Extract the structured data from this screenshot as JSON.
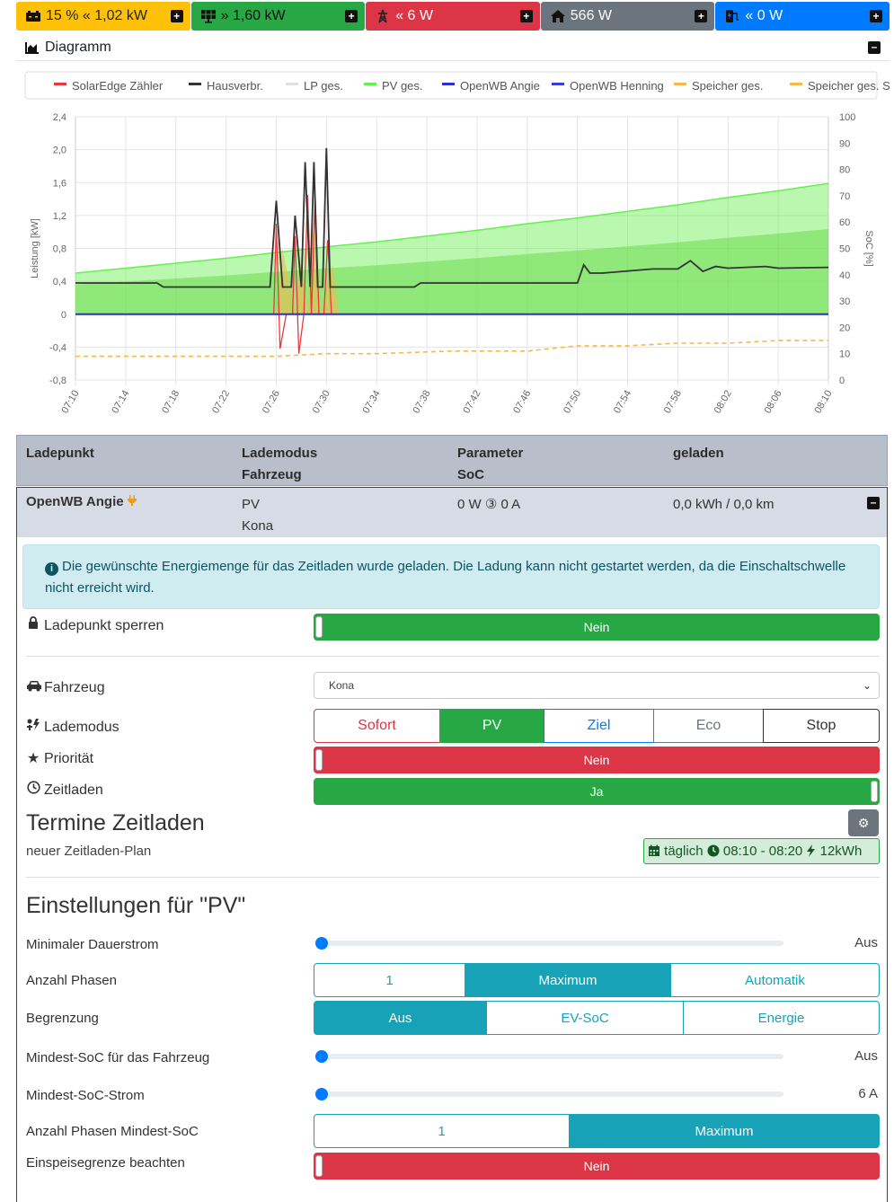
{
  "topbar": {
    "battery": {
      "value": "15 % « 1,02 kW"
    },
    "pv": {
      "value": "» 1,60 kW"
    },
    "grid": {
      "value": "« 6 W"
    },
    "house": {
      "value": "566 W"
    },
    "chargepoints": {
      "value": "« 0 W"
    }
  },
  "diagram": {
    "title": "Diagramm"
  },
  "chart_data": {
    "type": "line",
    "legend": [
      "SolarEdge Zähler",
      "Hausverbr.",
      "LP ges.",
      "PV ges.",
      "OpenWB Angie",
      "OpenWB Henning",
      "Speicher ges.",
      "Speicher ges. SoC"
    ],
    "legend_colors": [
      "#e8383d",
      "#333333",
      "#e0e0e0",
      "#66f050",
      "#2c2cdb",
      "#3a3ae0",
      "#f4b84f",
      "#f4b84f"
    ],
    "x_ticks": [
      "07:10",
      "07:14",
      "07:18",
      "07:22",
      "07:26",
      "07:30",
      "07:34",
      "07:38",
      "07:42",
      "07:46",
      "07:50",
      "07:54",
      "07:58",
      "08:02",
      "08:06",
      "08:10"
    ],
    "y_left_ticks": [
      "2,4",
      "2,0",
      "1,6",
      "1,2",
      "0,8",
      "0,4",
      "0",
      "-0,4",
      "-0,8"
    ],
    "y_right_ticks": [
      "100",
      "90",
      "80",
      "70",
      "60",
      "50",
      "40",
      "30",
      "20",
      "10",
      "0"
    ],
    "ylabel_left": "Leistung [kW]",
    "ylabel_right": "SoC [%]",
    "ylim_left": [
      -0.8,
      2.4
    ],
    "ylim_right": [
      0,
      100
    ],
    "series": [
      {
        "name": "PV ges.",
        "color": "#66f050",
        "x": [
          0,
          4,
          8,
          12,
          16,
          20,
          24,
          28,
          32,
          36,
          40,
          44,
          48,
          52,
          56,
          60
        ],
        "values": [
          0.5,
          0.56,
          0.62,
          0.68,
          0.75,
          0.82,
          0.88,
          0.95,
          1.02,
          1.1,
          1.17,
          1.25,
          1.33,
          1.42,
          1.5,
          1.59
        ]
      },
      {
        "name": "Hausverbr.",
        "color": "#333333",
        "x": [
          0,
          6.5,
          7,
          15.5,
          16,
          16.5,
          17.2,
          17.5,
          18,
          18.3,
          18.7,
          19,
          19.3,
          19.7,
          20,
          20.3,
          20.8,
          27,
          27.5,
          40,
          40.5,
          41,
          42,
          46,
          48,
          49,
          50,
          51,
          52,
          55,
          56,
          60
        ],
        "values": [
          0.38,
          0.38,
          0.33,
          0.33,
          1.38,
          0.33,
          0.33,
          1.2,
          0.33,
          1.85,
          0.33,
          1.85,
          0.33,
          0.33,
          2.02,
          0.33,
          0.33,
          0.33,
          0.38,
          0.38,
          0.6,
          0.5,
          0.5,
          0.55,
          0.55,
          0.65,
          0.52,
          0.58,
          0.56,
          0.58,
          0.56,
          0.57
        ]
      },
      {
        "name": "SolarEdge Zähler",
        "color": "#e8383d",
        "x": [
          0,
          15.8,
          16,
          16.3,
          16.8,
          17.3,
          17.5,
          17.8,
          18.2,
          18.5,
          18.8,
          19.1,
          19.4,
          19.8,
          20.1,
          20.4,
          20.8,
          60
        ],
        "values": [
          0,
          0,
          1.1,
          -0.42,
          0,
          0,
          0.95,
          -0.48,
          0,
          1.45,
          0,
          1.45,
          0,
          0,
          0.9,
          0,
          0,
          0
        ]
      },
      {
        "name": "Speicher ges.",
        "color": "#f4b84f",
        "x": [
          0,
          16,
          16.5,
          17.5,
          18,
          18.5,
          19,
          19.5,
          20.5,
          21,
          60
        ],
        "values": [
          0,
          0,
          0.8,
          0,
          0.7,
          0,
          1.2,
          0,
          0.6,
          0,
          0
        ]
      },
      {
        "name": "Speicher ges. SoC",
        "color": "#f4b84f",
        "x": [
          0,
          8,
          16,
          20,
          24,
          30,
          36,
          40,
          44,
          48,
          52,
          56,
          60
        ],
        "values": [
          9,
          9,
          9,
          10,
          10,
          11,
          11,
          13,
          13,
          14,
          14,
          15,
          15
        ]
      },
      {
        "name": "OpenWB Angie",
        "color": "#2c2cdb",
        "x": [
          0,
          60
        ],
        "values": [
          0,
          0
        ]
      }
    ]
  },
  "table": {
    "headers": {
      "col1": "Ladepunkt",
      "col2a": "Lademodus",
      "col2b": "Fahrzeug",
      "col3a": "Parameter",
      "col3b": "SoC",
      "col4": "geladen"
    },
    "row": {
      "name": "OpenWB Angie",
      "mode": "PV",
      "vehicle": "Kona",
      "params": "0 W ③ 0 A",
      "charged": "0,0 kWh / 0,0 km"
    }
  },
  "alert": {
    "text": "Die gewünschte Energiemenge für das Zeitladen wurde geladen. Die Ladung kann nicht gestartet werden, da die Einschaltschwelle nicht erreicht wird."
  },
  "settings": {
    "lock_label": "Ladepunkt sperren",
    "lock_value": "Nein",
    "vehicle_label": "Fahrzeug",
    "vehicle_value": "Kona",
    "mode_label": "Lademodus",
    "modes": [
      "Sofort",
      "PV",
      "Ziel",
      "Eco",
      "Stop"
    ],
    "priority_label": "Priorität",
    "priority_value": "Nein",
    "timed_label": "Zeitladen",
    "timed_value": "Ja"
  },
  "timed": {
    "title": "Termine Zeitladen",
    "plan_name": "neuer Zeitladen-Plan",
    "badge_freq": "täglich",
    "badge_time": "08:10 - 08:20",
    "badge_energy": "12kWh"
  },
  "pv": {
    "title": "Einstellungen für \"PV\"",
    "min_current_label": "Minimaler Dauerstrom",
    "min_current_value": "Aus",
    "phases_label": "Anzahl Phasen",
    "phases": [
      "1",
      "Maximum",
      "Automatik"
    ],
    "limit_label": "Begrenzung",
    "limits": [
      "Aus",
      "EV-SoC",
      "Energie"
    ],
    "min_soc_label": "Mindest-SoC für das Fahrzeug",
    "min_soc_value": "Aus",
    "min_soc_current_label": "Mindest-SoC-Strom",
    "min_soc_current_value": "6 A",
    "min_soc_phases_label": "Anzahl Phasen Mindest-SoC",
    "min_soc_phases": [
      "1",
      "Maximum"
    ],
    "feed_in_label": "Einspeisegrenze beachten",
    "feed_in_value": "Nein"
  }
}
